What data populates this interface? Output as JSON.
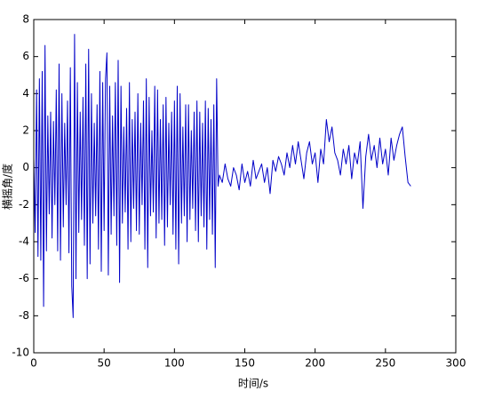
{
  "chart_data": {
    "type": "line",
    "xlabel": "时间/s",
    "ylabel": "横摇角/度",
    "xlim": [
      0,
      300
    ],
    "xticks": [
      0,
      50,
      100,
      150,
      200,
      250,
      300
    ],
    "ylim": [
      -10,
      8
    ],
    "yticks": [
      -10,
      -8,
      -6,
      -4,
      -2,
      0,
      2,
      4,
      6,
      8
    ],
    "grid": false,
    "series": [
      {
        "color": "#0000c8",
        "x": [
          0,
          1,
          2,
          3,
          4,
          5,
          6,
          7,
          8,
          9,
          10,
          11,
          12,
          13,
          14,
          15,
          16,
          17,
          18,
          19,
          20,
          21,
          22,
          23,
          24,
          25,
          26,
          27,
          28,
          29,
          30,
          31,
          32,
          33,
          34,
          35,
          36,
          37,
          38,
          39,
          40,
          41,
          42,
          43,
          44,
          45,
          46,
          47,
          48,
          49,
          50,
          51,
          52,
          53,
          54,
          55,
          56,
          57,
          58,
          59,
          60,
          61,
          62,
          63,
          64,
          65,
          66,
          67,
          68,
          69,
          70,
          71,
          72,
          73,
          74,
          75,
          76,
          77,
          78,
          79,
          80,
          81,
          82,
          83,
          84,
          85,
          86,
          87,
          88,
          89,
          90,
          91,
          92,
          93,
          94,
          95,
          96,
          97,
          98,
          99,
          100,
          101,
          102,
          103,
          104,
          105,
          106,
          107,
          108,
          109,
          110,
          111,
          112,
          113,
          114,
          115,
          116,
          117,
          118,
          119,
          120,
          121,
          122,
          123,
          124,
          125,
          126,
          127,
          128,
          129,
          130,
          131,
          132,
          134,
          136,
          138,
          140,
          142,
          144,
          146,
          148,
          150,
          152,
          154,
          156,
          158,
          160,
          162,
          164,
          166,
          168,
          170,
          172,
          174,
          176,
          178,
          180,
          182,
          184,
          186,
          188,
          190,
          192,
          194,
          196,
          198,
          200,
          202,
          204,
          206,
          208,
          210,
          212,
          214,
          216,
          218,
          220,
          222,
          224,
          226,
          228,
          230,
          232,
          234,
          236,
          238,
          240,
          242,
          244,
          246,
          248,
          250,
          252,
          254,
          256,
          258,
          260,
          262,
          264,
          266,
          268
        ],
        "values": [
          0.5,
          -3.5,
          4.2,
          -4.8,
          4.8,
          -5.0,
          5.2,
          -7.5,
          6.6,
          -4.5,
          2.8,
          -2.5,
          3.0,
          -3.8,
          2.5,
          -2.0,
          4.2,
          -4.5,
          5.6,
          -5.0,
          4.0,
          -3.2,
          2.4,
          -2.0,
          3.6,
          -4.6,
          5.4,
          -6.4,
          -8.1,
          7.2,
          -6.0,
          4.6,
          -3.5,
          3.0,
          -2.8,
          3.8,
          -4.2,
          5.6,
          -6.0,
          6.4,
          -5.2,
          4.0,
          -3.0,
          2.4,
          -2.6,
          3.4,
          -4.4,
          5.2,
          -5.6,
          4.6,
          -3.4,
          4.8,
          6.2,
          -5.8,
          4.4,
          -3.6,
          2.8,
          -2.6,
          4.6,
          -4.2,
          5.8,
          -6.2,
          4.4,
          -3.0,
          2.2,
          -2.4,
          3.2,
          -4.4,
          4.6,
          -4.0,
          2.6,
          -2.2,
          3.0,
          -3.4,
          4.0,
          -3.6,
          2.4,
          -2.0,
          3.6,
          -4.4,
          4.8,
          -5.4,
          3.8,
          -2.6,
          2.0,
          -2.4,
          4.4,
          -3.8,
          4.2,
          -3.0,
          2.6,
          -2.8,
          3.4,
          -4.2,
          3.8,
          -3.2,
          2.4,
          -2.0,
          3.0,
          -3.6,
          3.6,
          -4.4,
          4.4,
          -5.2,
          4.0,
          -3.0,
          2.2,
          -2.6,
          3.4,
          -4.0,
          3.4,
          -2.8,
          2.0,
          -2.2,
          3.0,
          -3.4,
          3.6,
          -4.0,
          3.0,
          -2.6,
          2.4,
          -3.2,
          3.6,
          -4.4,
          3.2,
          -2.8,
          2.6,
          -3.6,
          3.4,
          -5.4,
          4.8,
          -1.0,
          -0.4,
          -0.8,
          0.2,
          -0.6,
          -1.0,
          0.0,
          -0.4,
          -1.2,
          0.2,
          -0.8,
          -0.2,
          -1.0,
          0.4,
          -0.6,
          -0.2,
          0.2,
          -0.8,
          0.0,
          -1.4,
          0.4,
          -0.2,
          0.6,
          0.2,
          -0.4,
          0.8,
          0.0,
          1.2,
          0.2,
          1.4,
          0.4,
          -0.6,
          0.8,
          1.4,
          0.2,
          0.8,
          -0.8,
          1.0,
          0.2,
          2.6,
          1.4,
          2.2,
          0.8,
          0.4,
          -0.4,
          1.0,
          0.2,
          1.2,
          -0.6,
          0.8,
          0.2,
          1.4,
          -2.2,
          0.6,
          1.8,
          0.4,
          1.2,
          0.0,
          1.6,
          0.2,
          1.0,
          -0.4,
          1.6,
          0.4,
          1.2,
          1.8,
          2.2,
          0.6,
          -0.8,
          -1.0
        ]
      }
    ]
  }
}
